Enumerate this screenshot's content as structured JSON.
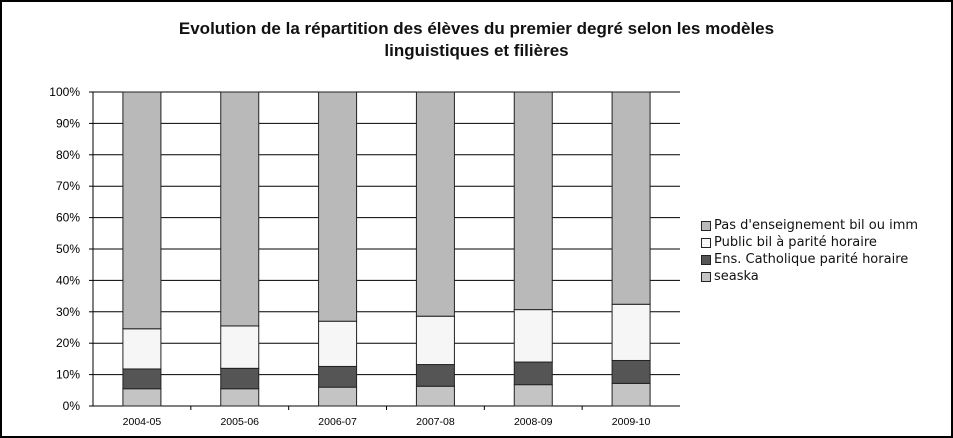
{
  "chart_data": {
    "type": "bar",
    "stacked": true,
    "title": "Evolution de la répartition des élèves du premier degré selon les modèles linguistiques et filières",
    "title_lines": [
      "Evolution de la répartition des élèves du premier degré selon les modèles",
      "linguistiques et filières"
    ],
    "categories": [
      "2004-05",
      "2005-06",
      "2006-07",
      "2007-08",
      "2008-09",
      "2009-10"
    ],
    "y_ticks": [
      "0%",
      "10%",
      "20%",
      "30%",
      "40%",
      "50%",
      "60%",
      "70%",
      "80%",
      "90%",
      "100%"
    ],
    "ylim": [
      0,
      100
    ],
    "grid": true,
    "legend_position": "right",
    "series": [
      {
        "name": "seaska",
        "values": [
          5.5,
          5.5,
          6,
          6.3,
          6.8,
          7.2
        ],
        "color": "#c4c4c4"
      },
      {
        "name": "Ens. Catholique parité horaire",
        "values": [
          6.3,
          6.5,
          6.6,
          6.9,
          7.2,
          7.3
        ],
        "color": "#555555"
      },
      {
        "name": "Public bil à parité horaire",
        "values": [
          12.8,
          13.5,
          14.4,
          15.4,
          16.7,
          17.9
        ],
        "color": "#f6f6f6"
      },
      {
        "name": "Pas d'enseignement bil ou imm",
        "values": [
          75.4,
          74.5,
          73,
          71.4,
          69.3,
          67.6
        ],
        "color": "#b9b9b9"
      }
    ],
    "legend_order": [
      3,
      2,
      1,
      0
    ]
  }
}
